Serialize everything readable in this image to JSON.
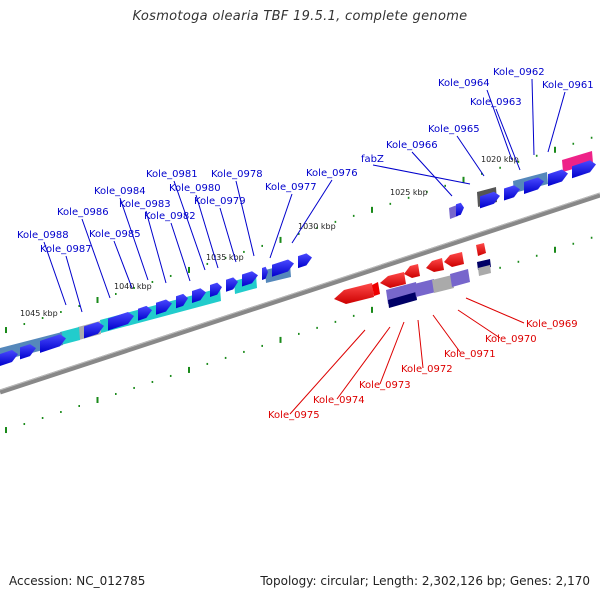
{
  "title": "Kosmotoga olearia TBF 19.5.1, complete genome",
  "footer": {
    "accession": "Accession: NC_012785",
    "summary": "Topology: circular; Length: 2,302,126 bp; Genes: 2,170"
  },
  "colors": {
    "forward_gene": "#0000ee",
    "reverse_gene": "#ee0000",
    "forward_label": "#0000cc",
    "reverse_label": "#dd0000",
    "backbone": "#888888",
    "tick": "#1a8a1a",
    "cyan_feature": "#22cccc",
    "steel_feature": "#5588bb",
    "magenta_feature": "#ee2288",
    "gray_feature": "#aaaaaa",
    "purple_feature": "#7766cc",
    "navy_feature": "#000066"
  },
  "kbp_labels": [
    "1020 kbp",
    "1025 kbp",
    "1030 kbp",
    "1035 kbp",
    "1040 kbp",
    "1045 kbp"
  ],
  "forward_labels": [
    "Kole_0962",
    "Kole_0964",
    "Kole_0961",
    "Kole_0963",
    "Kole_0965",
    "fabZ",
    "Kole_0966",
    "Kole_0981",
    "Kole_0978",
    "Kole_0976",
    "Kole_0980",
    "Kole_0977",
    "Kole_0984",
    "Kole_0983",
    "Kole_0979",
    "Kole_0986",
    "Kole_0982",
    "Kole_0988",
    "Kole_0985",
    "Kole_0987"
  ],
  "reverse_labels": [
    "Kole_0969",
    "Kole_0970",
    "Kole_0971",
    "Kole_0972",
    "Kole_0973",
    "Kole_0974",
    "Kole_0975"
  ]
}
